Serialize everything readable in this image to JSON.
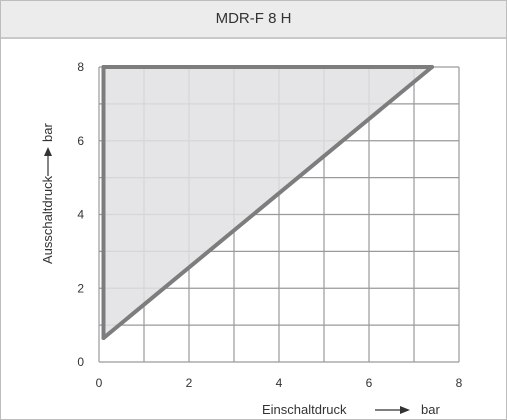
{
  "title": "MDR-F 8 H",
  "chart_data": {
    "type": "area",
    "title": "MDR-F 8 H",
    "xlabel": "Einschaltdruck",
    "ylabel": "Ausschaltdruck",
    "xunit": "bar",
    "yunit": "bar",
    "xlim": [
      0,
      8
    ],
    "ylim": [
      0,
      8
    ],
    "x_ticks": [
      "0",
      "2",
      "4",
      "6",
      "8"
    ],
    "y_ticks": [
      "0",
      "2",
      "4",
      "6",
      "8"
    ],
    "grid": true,
    "region_boundary": [
      {
        "x": 0.1,
        "y": 0.65
      },
      {
        "x": 0.1,
        "y": 8
      },
      {
        "x": 7.4,
        "y": 8
      }
    ],
    "colors": {
      "fill": "#e1dfe2",
      "boundary": "#7d7d7d",
      "grid": "#9a9a9a"
    }
  }
}
